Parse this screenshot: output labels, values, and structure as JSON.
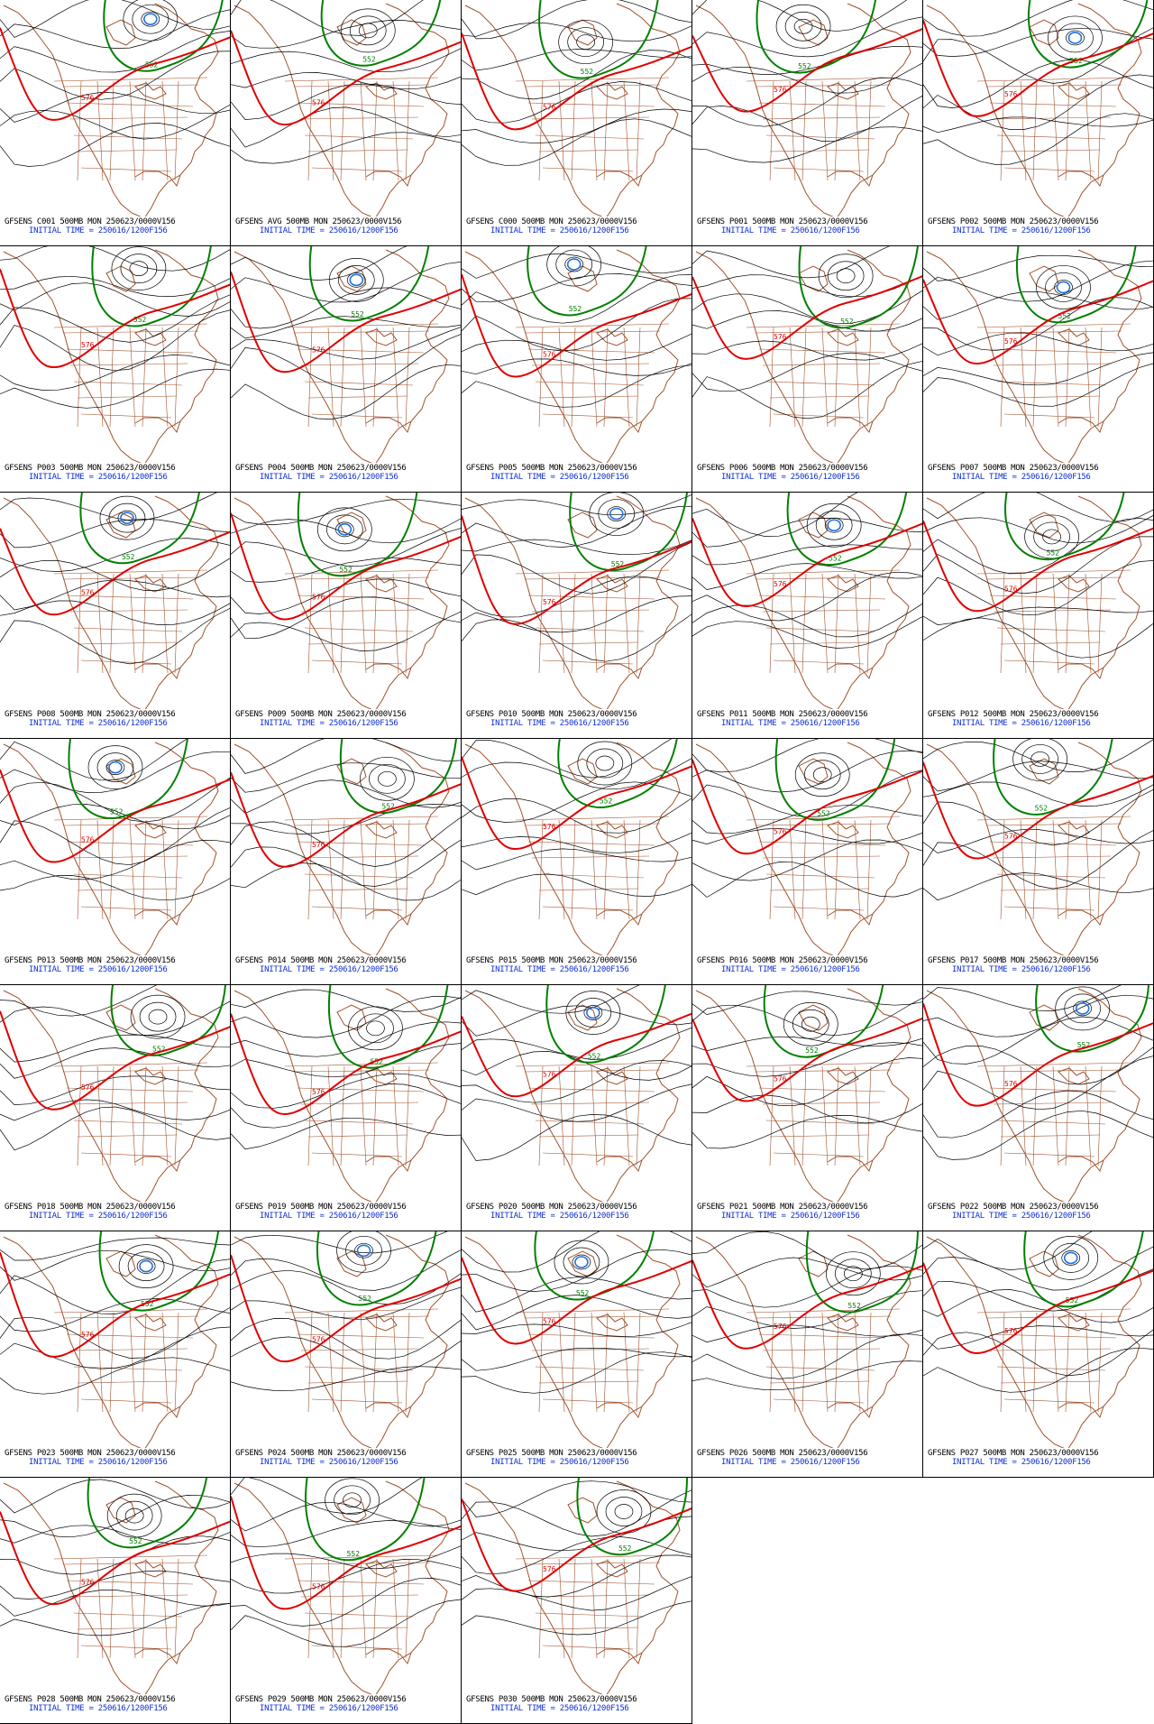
{
  "colors": {
    "geography": "#a0522d",
    "height_contours": "#000000",
    "line_576": "#e00000",
    "line_552": "#008000",
    "low_center": "#2070e0",
    "initial_time_text": "#1030d0"
  },
  "contour_labels": {
    "red": "576",
    "green": "552"
  },
  "initial_time": "INITIAL TIME = 250616/1200F156",
  "panels": [
    {
      "title": "GFSENS C001 500MB MON 250623/0000V156",
      "low": true
    },
    {
      "title": "GFSENS AVG 500MB MON 250623/0000V156",
      "low": false
    },
    {
      "title": "GFSENS C000 500MB MON 250623/0000V156",
      "low": false
    },
    {
      "title": "GFSENS P001 500MB MON 250623/0000V156",
      "low": false
    },
    {
      "title": "GFSENS P002 500MB MON 250623/0000V156",
      "low": true
    },
    {
      "title": "GFSENS P003 500MB MON 250623/0000V156",
      "low": false
    },
    {
      "title": "GFSENS P004 500MB MON 250623/0000V156",
      "low": true
    },
    {
      "title": "GFSENS P005 500MB MON 250623/0000V156",
      "low": true
    },
    {
      "title": "GFSENS P006 500MB MON 250623/0000V156",
      "low": false
    },
    {
      "title": "GFSENS P007 500MB MON 250623/0000V156",
      "low": true
    },
    {
      "title": "GFSENS P008 500MB MON 250623/0000V156",
      "low": true
    },
    {
      "title": "GFSENS P009 500MB MON 250623/0000V156",
      "low": true
    },
    {
      "title": "GFSENS P010 500MB MON 250623/0000V156",
      "low": true
    },
    {
      "title": "GFSENS P011 500MB MON 250623/0000V156",
      "low": true
    },
    {
      "title": "GFSENS P012 500MB MON 250623/0000V156",
      "low": false
    },
    {
      "title": "GFSENS P013 500MB MON 250623/0000V156",
      "low": true
    },
    {
      "title": "GFSENS P014 500MB MON 250623/0000V156",
      "low": false
    },
    {
      "title": "GFSENS P015 500MB MON 250623/0000V156",
      "low": false
    },
    {
      "title": "GFSENS P016 500MB MON 250623/0000V156",
      "low": false
    },
    {
      "title": "GFSENS P017 500MB MON 250623/0000V156",
      "low": false
    },
    {
      "title": "GFSENS P018 500MB MON 250623/0000V156",
      "low": false
    },
    {
      "title": "GFSENS P019 500MB MON 250623/0000V156",
      "low": false
    },
    {
      "title": "GFSENS P020 500MB MON 250623/0000V156",
      "low": true
    },
    {
      "title": "GFSENS P021 500MB MON 250623/0000V156",
      "low": false
    },
    {
      "title": "GFSENS P022 500MB MON 250623/0000V156",
      "low": true
    },
    {
      "title": "GFSENS P023 500MB MON 250623/0000V156",
      "low": true
    },
    {
      "title": "GFSENS P024 500MB MON 250623/0000V156",
      "low": true
    },
    {
      "title": "GFSENS P025 500MB MON 250623/0000V156",
      "low": true
    },
    {
      "title": "GFSENS P026 500MB MON 250623/0000V156",
      "low": false
    },
    {
      "title": "GFSENS P027 500MB MON 250623/0000V156",
      "low": true
    },
    {
      "title": "GFSENS P028 500MB MON 250623/0000V156",
      "low": false
    },
    {
      "title": "GFSENS P029 500MB MON 250623/0000V156",
      "low": false
    },
    {
      "title": "GFSENS P030 500MB MON 250623/0000V156",
      "low": false
    }
  ]
}
